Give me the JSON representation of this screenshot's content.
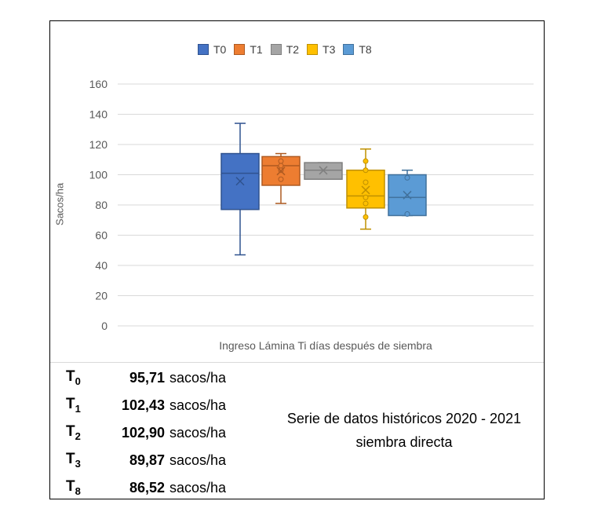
{
  "chart_data": {
    "type": "boxplot",
    "xlabel": "Ingreso Lámina Ti días después de siembra",
    "ylabel": "Sacos/ha",
    "ylim": [
      0,
      160
    ],
    "yticks": [
      0,
      20,
      40,
      60,
      80,
      100,
      120,
      140,
      160
    ],
    "grid": true,
    "legend_position": "top",
    "series": [
      {
        "name": "T0",
        "color": "#4472c4",
        "border": "#2f528f",
        "min": 47,
        "q1": 77,
        "median": 101,
        "q3": 114,
        "max": 134,
        "mean": 95.71,
        "points": []
      },
      {
        "name": "T1",
        "color": "#ed7d31",
        "border": "#ae5a21",
        "min": 81,
        "q1": 93,
        "median": 106,
        "q3": 112,
        "max": 114,
        "mean": 102.43,
        "points": [
          97,
          103,
          106,
          109
        ]
      },
      {
        "name": "T2",
        "color": "#a5a5a5",
        "border": "#7f7f7f",
        "min": 97,
        "q1": 97,
        "median": 103,
        "q3": 108,
        "max": 108,
        "mean": 102.9,
        "points": []
      },
      {
        "name": "T3",
        "color": "#ffc000",
        "border": "#bf9000",
        "min": 64,
        "q1": 78,
        "median": 86,
        "q3": 103,
        "max": 117,
        "mean": 89.87,
        "points": [
          72,
          81,
          85,
          95,
          103,
          109
        ]
      },
      {
        "name": "T8",
        "color": "#5b9bd5",
        "border": "#41719c",
        "min": 73,
        "q1": 73,
        "median": 85,
        "q3": 100,
        "max": 103,
        "mean": 86.52,
        "points": [
          74,
          98
        ]
      }
    ]
  },
  "summary": [
    {
      "label": "T",
      "sub": "0",
      "value": "95,71",
      "unit": "sacos/ha"
    },
    {
      "label": "T",
      "sub": "1",
      "value": "102,43",
      "unit": "sacos/ha"
    },
    {
      "label": "T",
      "sub": "2",
      "value": "102,90",
      "unit": "sacos/ha"
    },
    {
      "label": "T",
      "sub": "3",
      "value": "89,87",
      "unit": "sacos/ha"
    },
    {
      "label": "T",
      "sub": "8",
      "value": "86,52",
      "unit": "sacos/ha"
    }
  ],
  "note": {
    "line1": "Serie de datos históricos 2020 - 2021",
    "line2": "siembra directa"
  }
}
